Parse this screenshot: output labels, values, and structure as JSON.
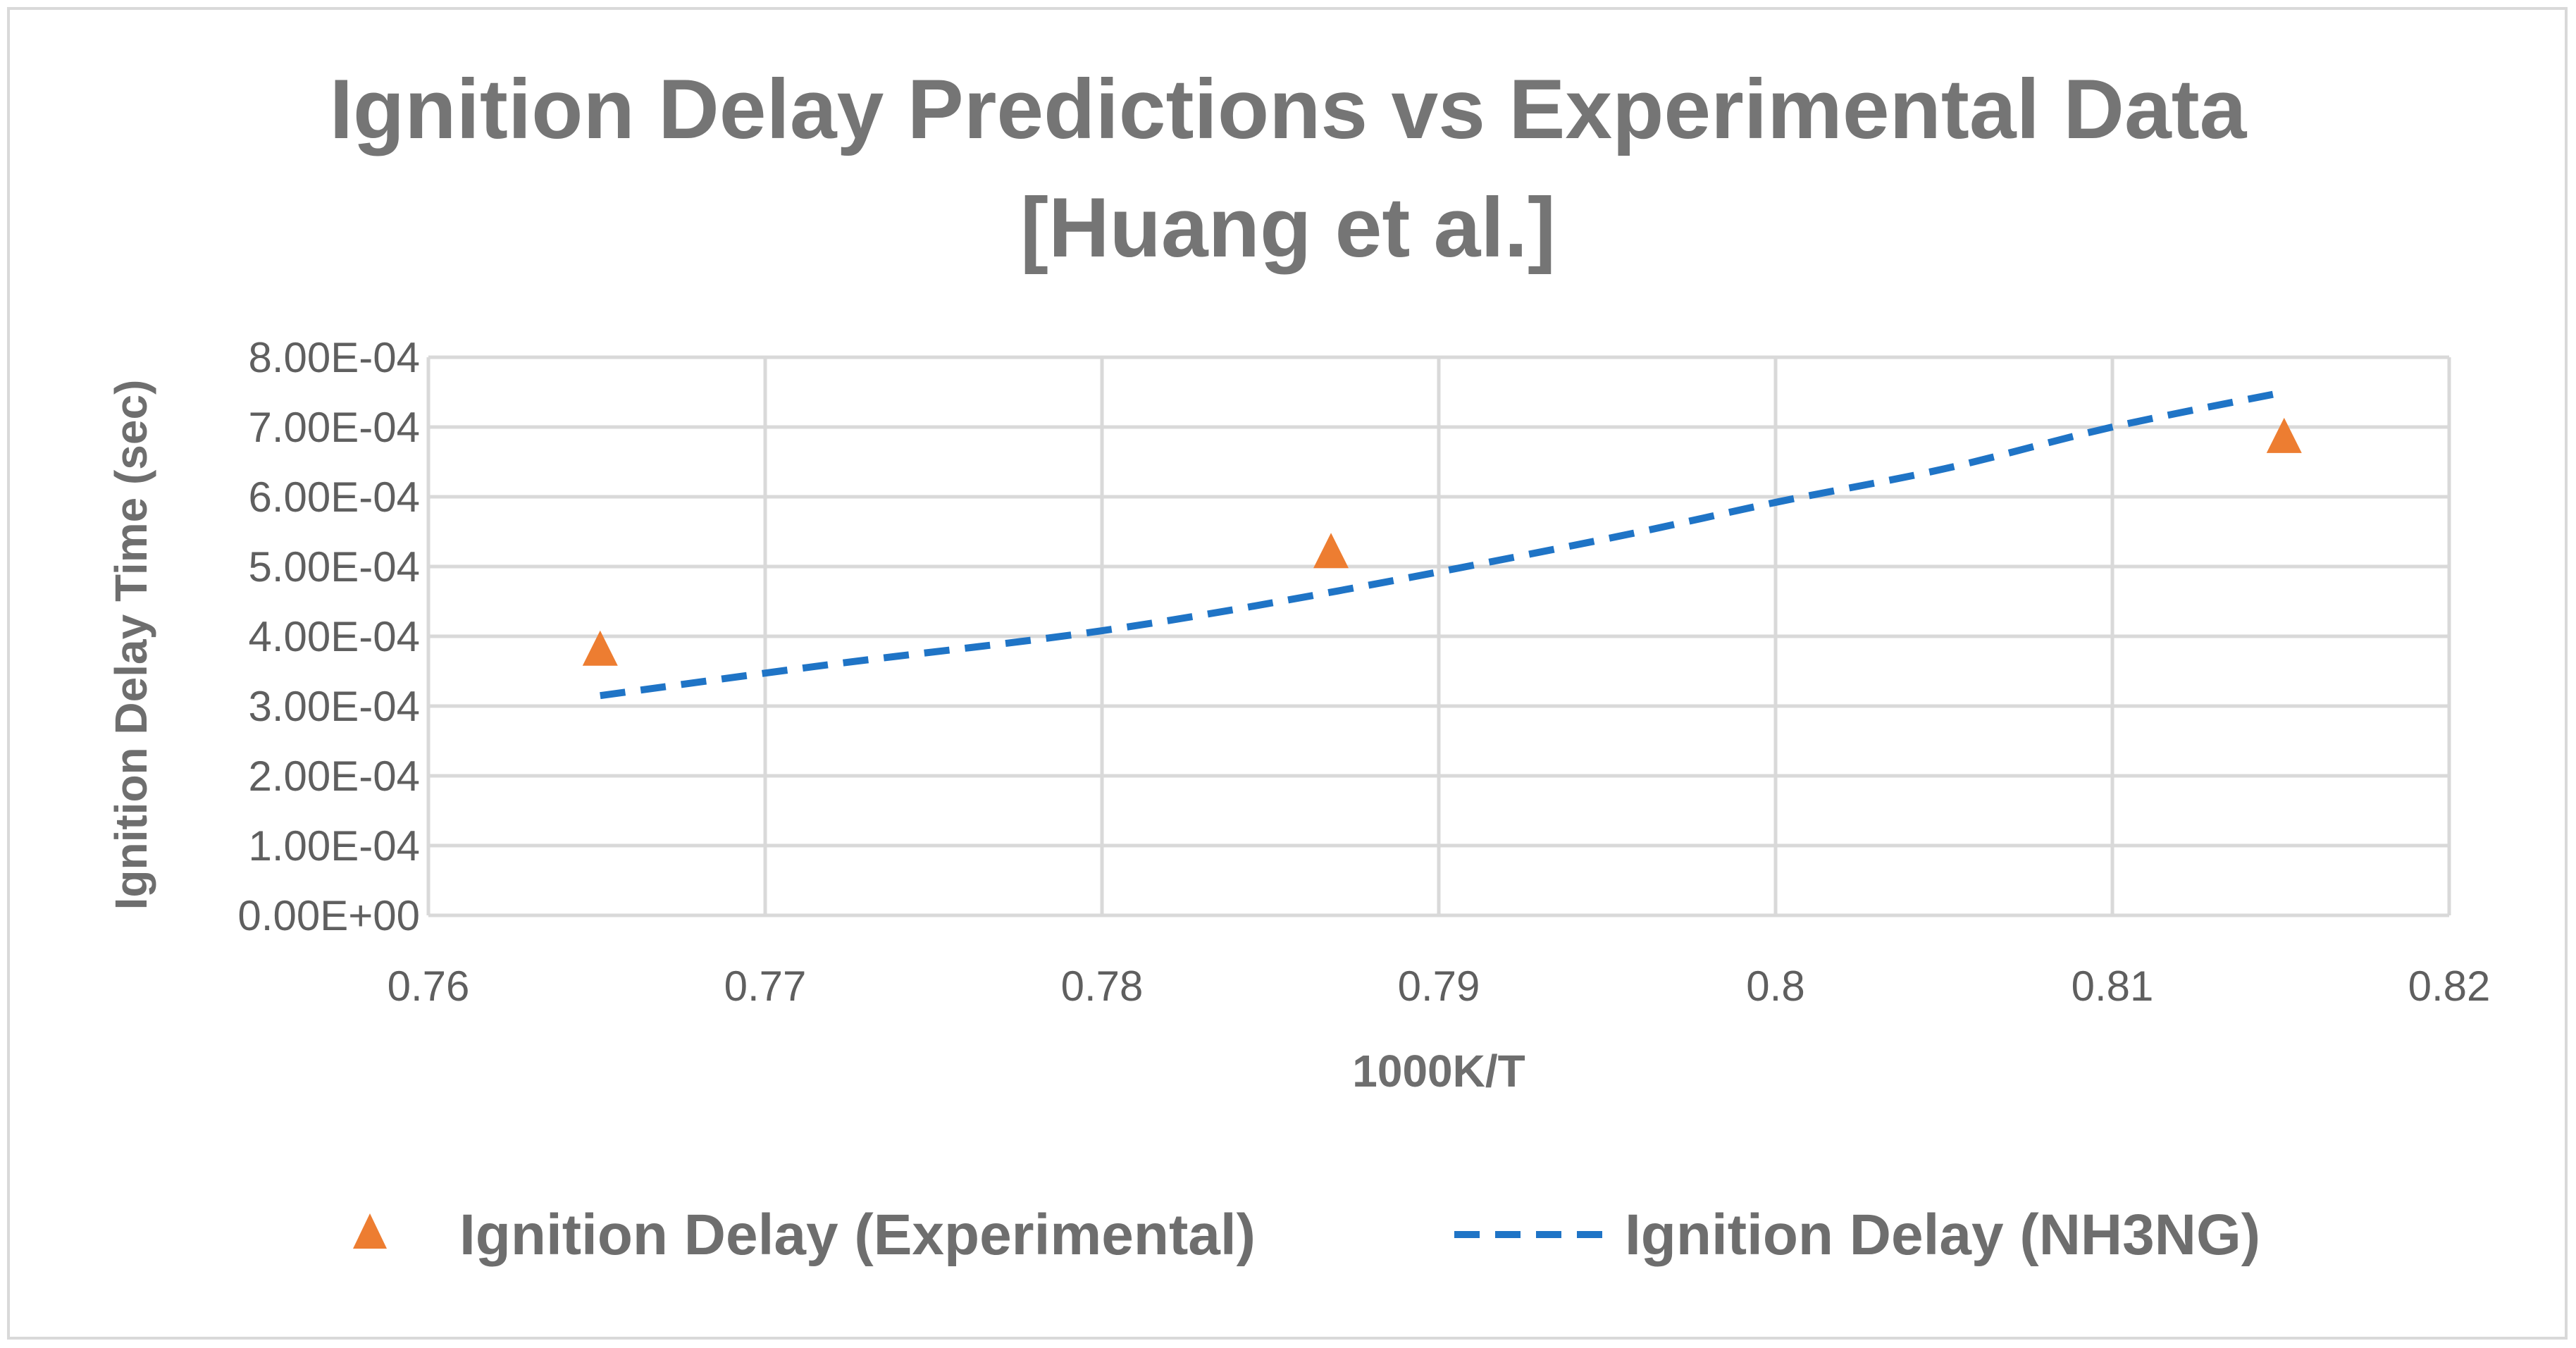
{
  "chart_data": {
    "type": "scatter",
    "title_lines": [
      "Ignition Delay Predictions vs Experimental Data",
      "[Huang et al.]"
    ],
    "xlabel": "1000K/T",
    "ylabel": "Ignition Delay Time (sec)",
    "xlim": [
      0.76,
      0.82
    ],
    "ylim": [
      0,
      0.0008
    ],
    "x_ticks": [
      0.76,
      0.77,
      0.78,
      0.79,
      0.8,
      0.81,
      0.82
    ],
    "x_tick_labels": [
      "0.76",
      "0.77",
      "0.78",
      "0.79",
      "0.8",
      "0.81",
      "0.82"
    ],
    "y_ticks": [
      0,
      0.0001,
      0.0002,
      0.0003,
      0.0004,
      0.0005,
      0.0006,
      0.0007,
      0.0008
    ],
    "y_tick_labels": [
      "0.00E+00",
      "1.00E-04",
      "2.00E-04",
      "3.00E-04",
      "4.00E-04",
      "5.00E-04",
      "6.00E-04",
      "7.00E-04",
      "8.00E-04"
    ],
    "grid": true,
    "legend_position": "bottom",
    "series": [
      {
        "name": "Ignition Delay (Experimental)",
        "style": "triangle-markers",
        "color": "#ED7D31",
        "x": [
          0.7651,
          0.7868,
          0.8151
        ],
        "y": [
          0.00038,
          0.00052,
          0.000685
        ]
      },
      {
        "name": "Ignition Delay (NH3NG)",
        "style": "dashed-line",
        "color": "#1F74C6",
        "x": [
          0.7651,
          0.772,
          0.78,
          0.787,
          0.795,
          0.8,
          0.805,
          0.81,
          0.8151
        ],
        "y": [
          0.000315,
          0.00036,
          0.000408,
          0.000465,
          0.00054,
          0.000592,
          0.00064,
          0.0007,
          0.00075
        ]
      }
    ]
  }
}
